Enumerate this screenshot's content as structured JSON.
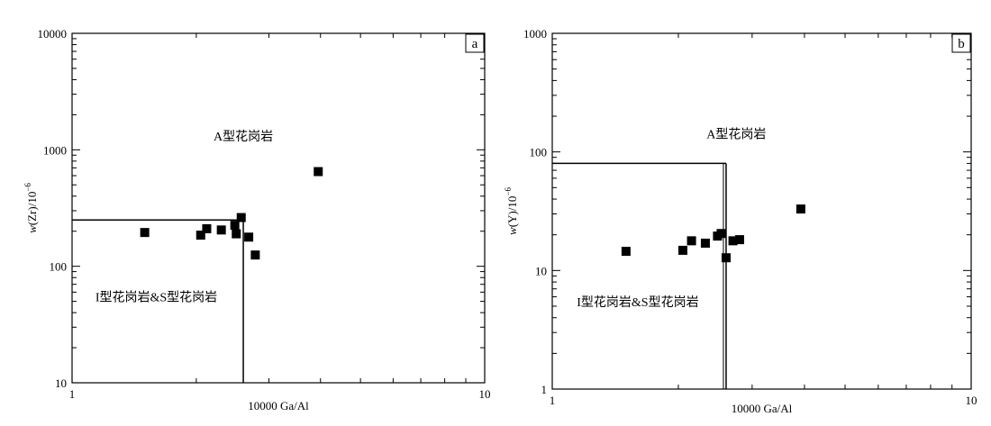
{
  "chart_data": [
    {
      "type": "scatter",
      "panel_label": "a",
      "xlabel": "10000 Ga/Al",
      "ylabel_main": "w(Zr)/10",
      "ylabel_exp": "−6",
      "x_scale": "log",
      "y_scale": "log",
      "xlim": [
        1,
        10
      ],
      "ylim": [
        10,
        10000
      ],
      "x_ticks": [
        1,
        10
      ],
      "x_tick_labels": [
        "1",
        "10"
      ],
      "y_ticks": [
        10,
        100,
        1000,
        10000
      ],
      "y_tick_labels": [
        "10",
        "100",
        "1000",
        "10000"
      ],
      "grid": false,
      "regions": [
        {
          "label": "A型花岗岩",
          "x": 2.6,
          "y": 1200
        },
        {
          "label": "I型花岗岩&S型花岗岩",
          "x": 1.6,
          "y": 50
        }
      ],
      "boundary": {
        "x_max": 2.6,
        "y_max": 250
      },
      "points": [
        {
          "x": 1.5,
          "y": 195
        },
        {
          "x": 2.05,
          "y": 185
        },
        {
          "x": 2.12,
          "y": 210
        },
        {
          "x": 2.3,
          "y": 205
        },
        {
          "x": 2.48,
          "y": 225
        },
        {
          "x": 2.5,
          "y": 190
        },
        {
          "x": 2.57,
          "y": 262
        },
        {
          "x": 2.68,
          "y": 178
        },
        {
          "x": 2.78,
          "y": 125
        },
        {
          "x": 3.95,
          "y": 650
        }
      ]
    },
    {
      "type": "scatter",
      "panel_label": "b",
      "xlabel": "10000 Ga/Al",
      "ylabel_main": "w(Y)/10",
      "ylabel_exp": "−6",
      "x_scale": "log",
      "y_scale": "log",
      "xlim": [
        1,
        10
      ],
      "ylim": [
        1,
        1000
      ],
      "x_ticks": [
        1,
        10
      ],
      "x_tick_labels": [
        "1",
        "10"
      ],
      "y_ticks": [
        1,
        10,
        100,
        1000
      ],
      "y_tick_labels": [
        "1",
        "10",
        "100",
        "1000"
      ],
      "grid": false,
      "regions": [
        {
          "label": "A型花岗岩",
          "x": 2.75,
          "y": 130
        },
        {
          "label": "I型花岗岩&S型花岗岩",
          "x": 1.6,
          "y": 5
        }
      ],
      "boundary": {
        "x_max": 2.6,
        "y_max": 80
      },
      "points": [
        {
          "x": 1.5,
          "y": 14.5
        },
        {
          "x": 2.05,
          "y": 14.8
        },
        {
          "x": 2.15,
          "y": 17.8
        },
        {
          "x": 2.32,
          "y": 17
        },
        {
          "x": 2.48,
          "y": 19.5
        },
        {
          "x": 2.53,
          "y": 20.5
        },
        {
          "x": 2.6,
          "y": 12.8
        },
        {
          "x": 2.7,
          "y": 17.8
        },
        {
          "x": 2.8,
          "y": 18.2
        },
        {
          "x": 3.92,
          "y": 33
        }
      ]
    }
  ]
}
